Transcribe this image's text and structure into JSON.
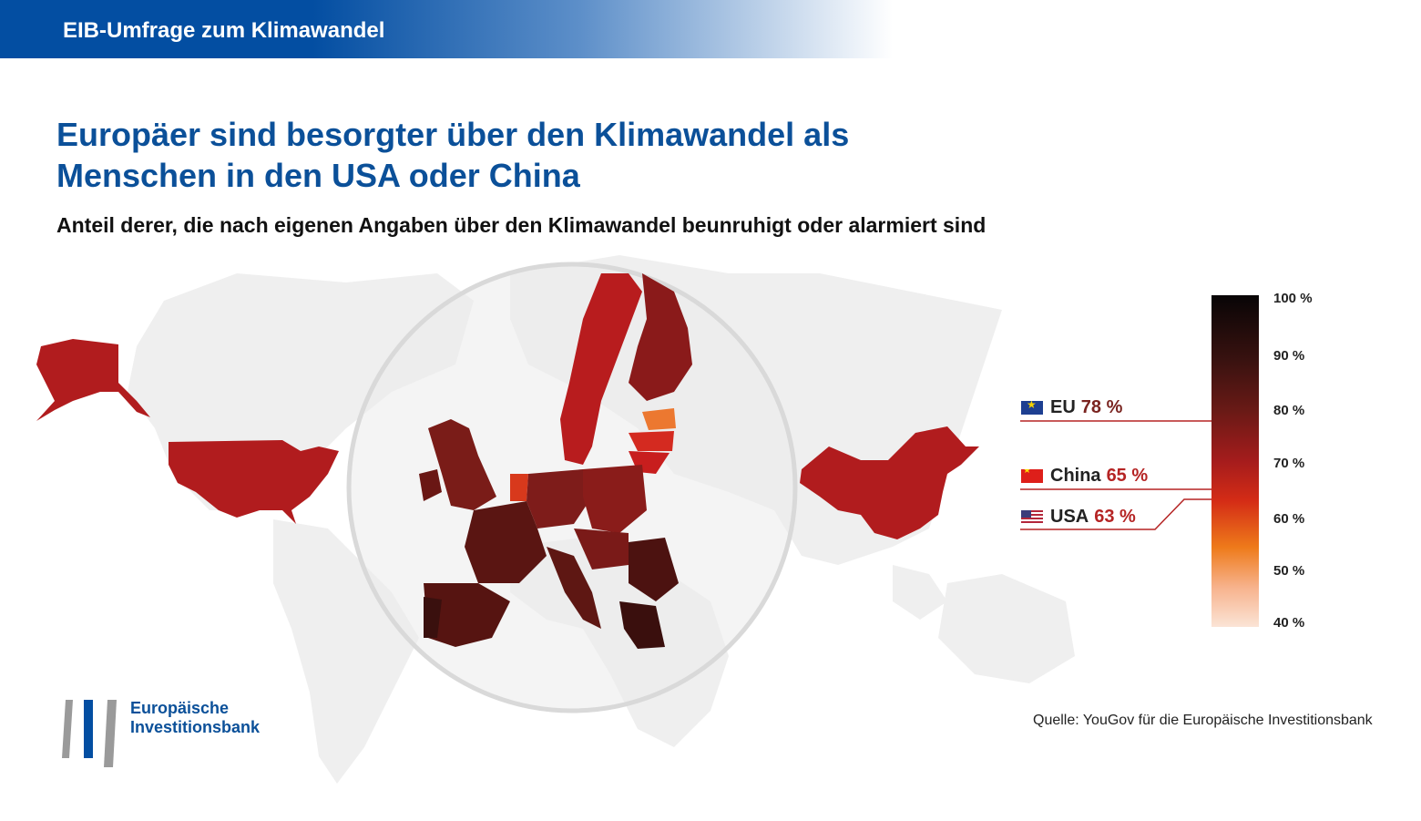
{
  "header": {
    "title": "EIB-Umfrage zum Klimawandel"
  },
  "title": {
    "line1": "Europäer sind besorgter über den Klimawandel als",
    "line2": "Menschen in den USA oder China"
  },
  "subtitle": "Anteil derer, die nach eigenen Angaben über den Klimawandel beunruhigt oder alarmiert sind",
  "legend": {
    "items": [
      {
        "label": "EU",
        "value": "78 %",
        "flag": "eu-flag-icon",
        "color": "#7a2420"
      },
      {
        "label": "China",
        "value": "65 %",
        "flag": "china-flag-icon",
        "color": "#b52424"
      },
      {
        "label": "USA",
        "value": "63 %",
        "flag": "usa-flag-icon",
        "color": "#b52424"
      }
    ]
  },
  "color_scale": {
    "ticks": [
      "100 %",
      "90 %",
      "80 %",
      "70 %",
      "60 %",
      "50 %",
      "40 %"
    ],
    "min": 40,
    "max": 100
  },
  "source": "Quelle: YouGov für die Europäische Investitionsbank",
  "logo": {
    "line1": "Europäische",
    "line2": "Investitionsbank"
  },
  "colors": {
    "brand_blue": "#0b5099",
    "header_blue": "#034ea2",
    "map_gray": "#efefef"
  }
}
